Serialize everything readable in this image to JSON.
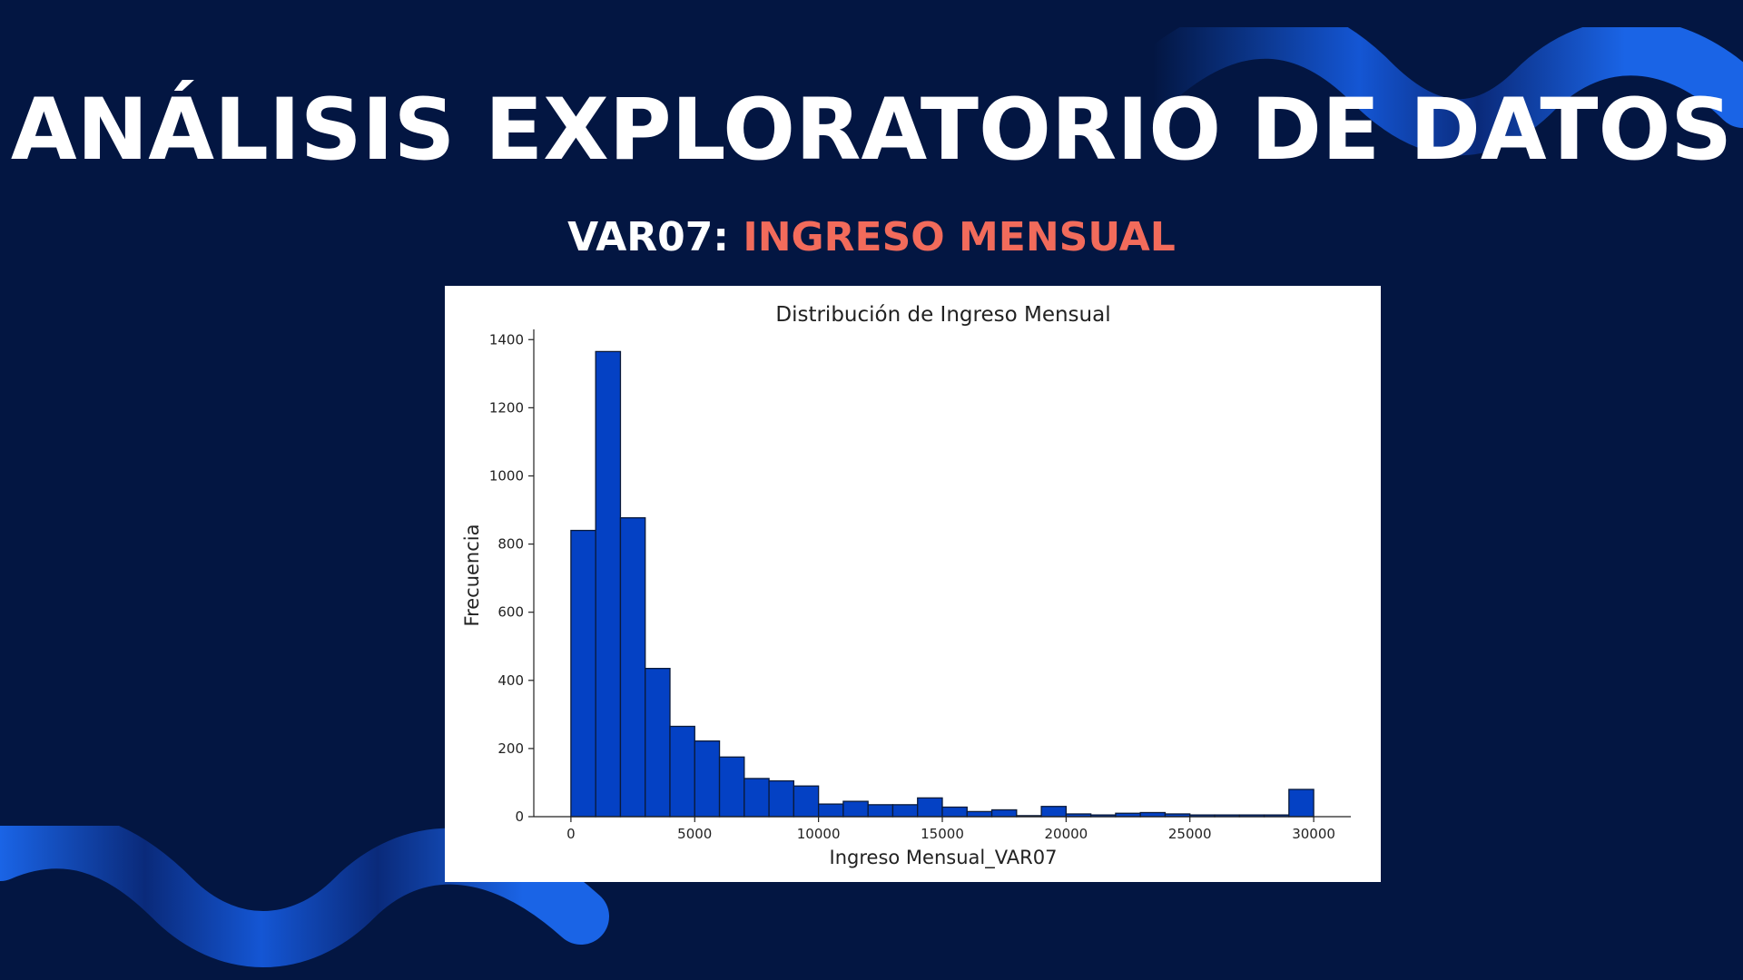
{
  "slide": {
    "title": "ANÁLISIS EXPLORATORIO DE DATOS",
    "subtitle_prefix": "VAR07: ",
    "subtitle_highlight": "INGRESO MENSUAL"
  },
  "colors": {
    "background": "#031642",
    "highlight": "#f26b5b",
    "bar_fill": "#0441c4",
    "bar_edge": "#0a1a3a",
    "wave": "#1a64e6"
  },
  "chart_data": {
    "type": "bar",
    "title": "Distribución de Ingreso Mensual",
    "xlabel": "Ingreso Mensual_VAR07",
    "ylabel": "Frecuencia",
    "bin_width": 1000,
    "bin_start": 0,
    "values": [
      840,
      1365,
      877,
      435,
      265,
      222,
      175,
      112,
      105,
      90,
      37,
      45,
      35,
      35,
      55,
      28,
      15,
      20,
      3,
      30,
      8,
      5,
      10,
      12,
      8,
      5,
      5,
      5,
      5,
      80
    ],
    "xlim": [
      -1500,
      31500
    ],
    "ylim": [
      0,
      1430
    ],
    "xticks": [
      0,
      5000,
      10000,
      15000,
      20000,
      25000,
      30000
    ],
    "yticks": [
      0,
      200,
      400,
      600,
      800,
      1000,
      1200,
      1400
    ],
    "grid": false,
    "legend": "none"
  }
}
